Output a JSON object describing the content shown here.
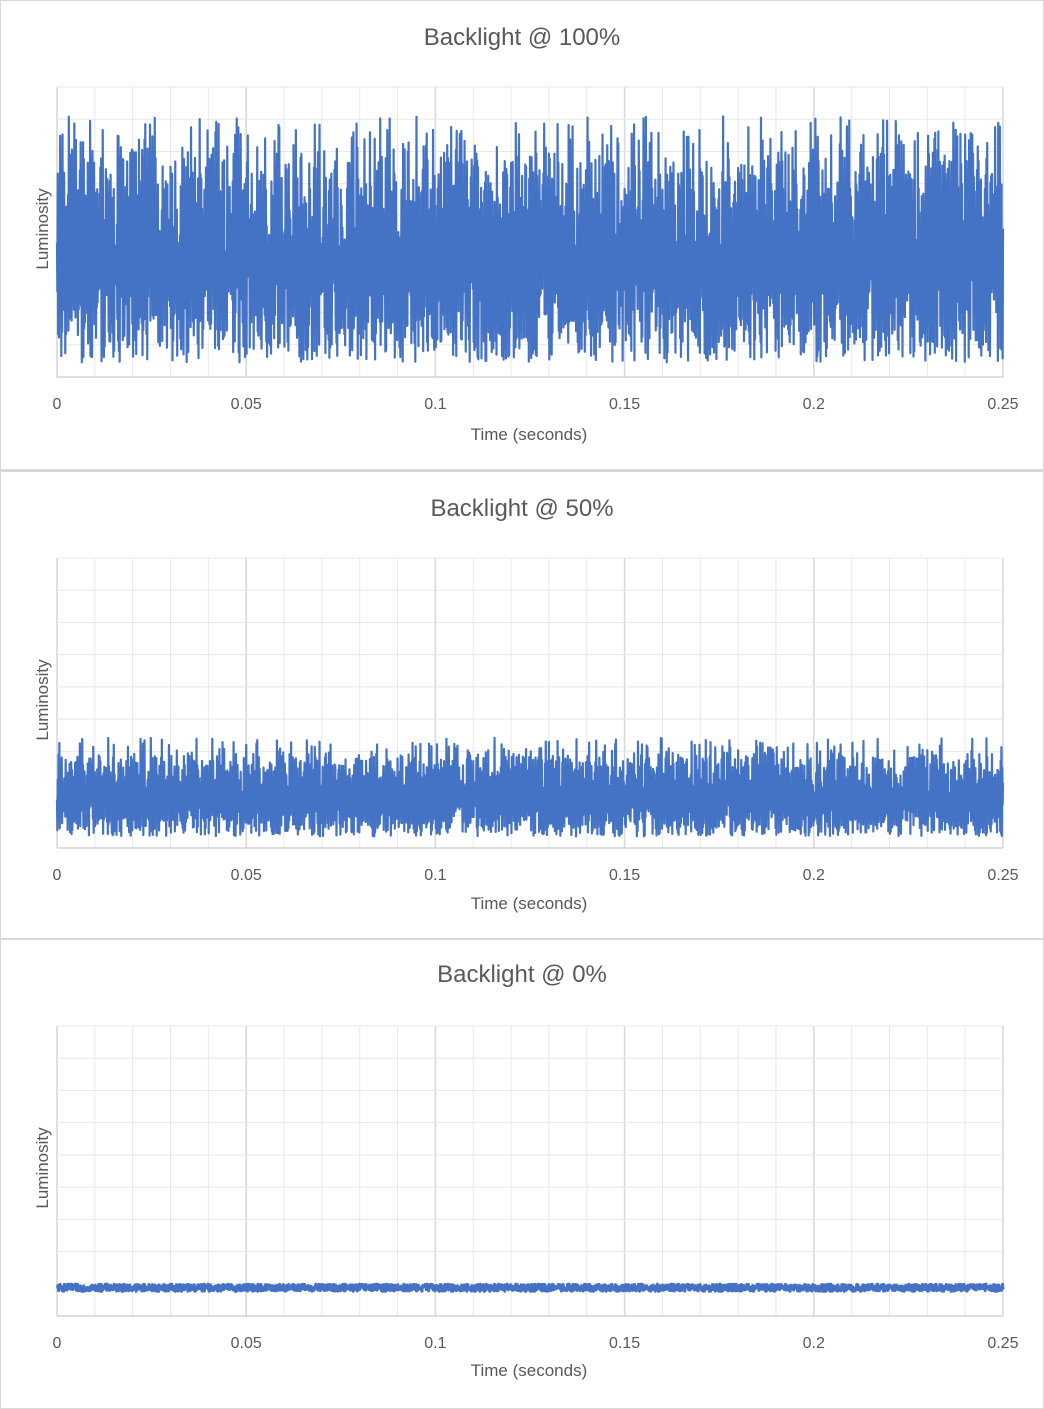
{
  "colors": {
    "series": "#4472c4",
    "grid_major": "#d9d9d9",
    "grid_minor": "#e8e8e8",
    "text": "#595959"
  },
  "chart_data": [
    {
      "type": "line",
      "title": "Backlight @ 100%",
      "xlabel": "Time (seconds)",
      "ylabel": "Luminosity",
      "x_ticks": [
        "0",
        "0.05",
        "0.1",
        "0.15",
        "0.2",
        "0.25"
      ],
      "xlim": [
        0,
        0.25
      ],
      "ylim": [
        0,
        1
      ],
      "grid": true,
      "y_ticks_shown": false,
      "series": [
        {
          "pattern": "rapid oscillation (flicker)",
          "min": 0.05,
          "max": 0.9,
          "typical_peak": 0.78
        }
      ]
    },
    {
      "type": "line",
      "title": "Backlight @ 50%",
      "xlabel": "Time (seconds)",
      "ylabel": "Luminosity",
      "x_ticks": [
        "0",
        "0.05",
        "0.1",
        "0.15",
        "0.2",
        "0.25"
      ],
      "xlim": [
        0,
        0.25
      ],
      "ylim": [
        0,
        1
      ],
      "grid": true,
      "y_ticks_shown": false,
      "series": [
        {
          "pattern": "rapid oscillation (flicker)",
          "min": 0.04,
          "max": 0.38,
          "typical_peak": 0.32
        }
      ]
    },
    {
      "type": "line",
      "title": "Backlight @ 0%",
      "xlabel": "Time (seconds)",
      "ylabel": "Luminosity",
      "x_ticks": [
        "0",
        "0.05",
        "0.1",
        "0.15",
        "0.2",
        "0.25"
      ],
      "xlim": [
        0,
        0.25
      ],
      "ylim": [
        0,
        1
      ],
      "grid": true,
      "y_ticks_shown": false,
      "series": [
        {
          "pattern": "flat with small noise",
          "min": 0.085,
          "max": 0.11,
          "typical_peak": 0.1
        }
      ]
    }
  ]
}
